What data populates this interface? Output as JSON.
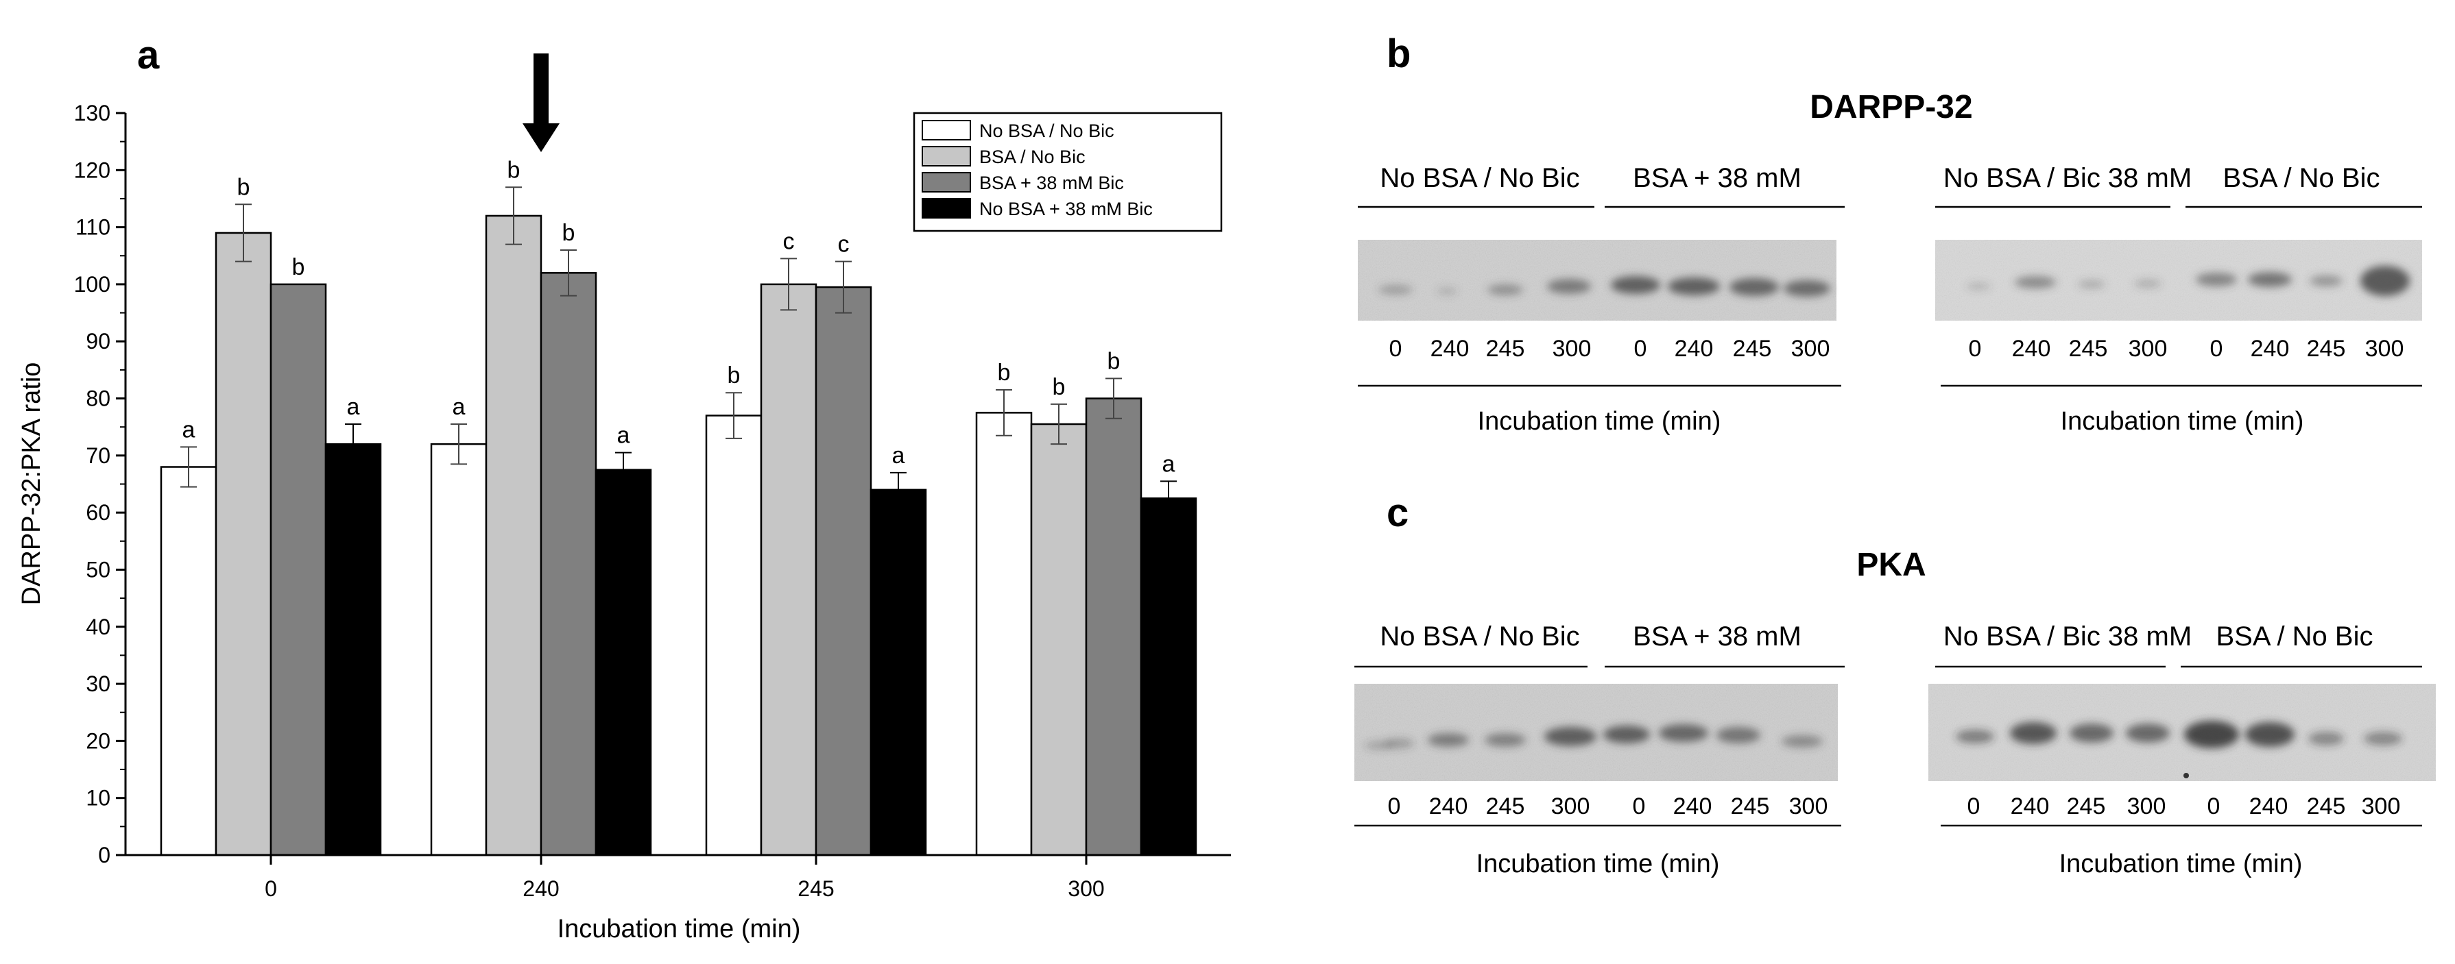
{
  "chart_data": {
    "type": "bar",
    "panel_label": "a",
    "title": "",
    "xlabel": "Incubation time (min)",
    "ylabel": "DARPP-32:PKA ratio",
    "ylim": [
      0,
      130
    ],
    "yticks": [
      "0",
      "10",
      "20",
      "30",
      "40",
      "50",
      "60",
      "70",
      "80",
      "90",
      "100",
      "110",
      "120",
      "130"
    ],
    "categories": [
      "0",
      "240",
      "245",
      "300"
    ],
    "series": [
      {
        "name": "No BSA / No Bic",
        "color": "#ffffff",
        "values": [
          68,
          72,
          77,
          77.5
        ],
        "errors": [
          3.5,
          3.5,
          4,
          4
        ],
        "letters": [
          "a",
          "a",
          "b",
          "b"
        ]
      },
      {
        "name": "BSA / No Bic",
        "color": "#c6c6c6",
        "values": [
          109,
          112,
          100,
          75.5
        ],
        "errors": [
          5,
          5,
          4.5,
          3.5
        ],
        "letters": [
          "b",
          "b",
          "c",
          "b"
        ]
      },
      {
        "name": "BSA + 38 mM Bic",
        "color": "#808080",
        "values": [
          100,
          102,
          99.5,
          80
        ],
        "errors": [
          0,
          4,
          4.5,
          3.5
        ],
        "letters": [
          "b",
          "b",
          "c",
          "b"
        ]
      },
      {
        "name": "No BSA  + 38 mM Bic",
        "color": "#000000",
        "values": [
          72,
          67.5,
          64,
          62.5
        ],
        "errors": [
          3.5,
          3,
          3,
          3
        ],
        "letters": [
          "a",
          "a",
          "a",
          "a"
        ]
      }
    ],
    "annotation": {
      "type": "arrow",
      "category": "240",
      "meaning": "pointing down to the 240 min group"
    },
    "legend_position": "top-right"
  },
  "blots": {
    "b": {
      "panel_label": "b",
      "title": "DARPP-32",
      "left_groups": [
        "No BSA / No Bic",
        "BSA + 38 mM"
      ],
      "right_groups": [
        "No BSA / Bic 38 mM",
        "BSA / No Bic"
      ],
      "lanes": [
        "0",
        "240",
        "245",
        "300"
      ],
      "xlabel_left": "Incubation time (min)",
      "xlabel_right": "Incubation time (min)"
    },
    "c": {
      "panel_label": "c",
      "title": "PKA",
      "left_groups": [
        "No BSA / No Bic",
        "BSA + 38 mM"
      ],
      "right_groups": [
        "No BSA / Bic 38 mM",
        "BSA / No Bic"
      ],
      "lanes": [
        "0",
        "240",
        "245",
        "300"
      ],
      "xlabel_left": "Incubation time (min)",
      "xlabel_right": "Incubation time (min)"
    }
  }
}
